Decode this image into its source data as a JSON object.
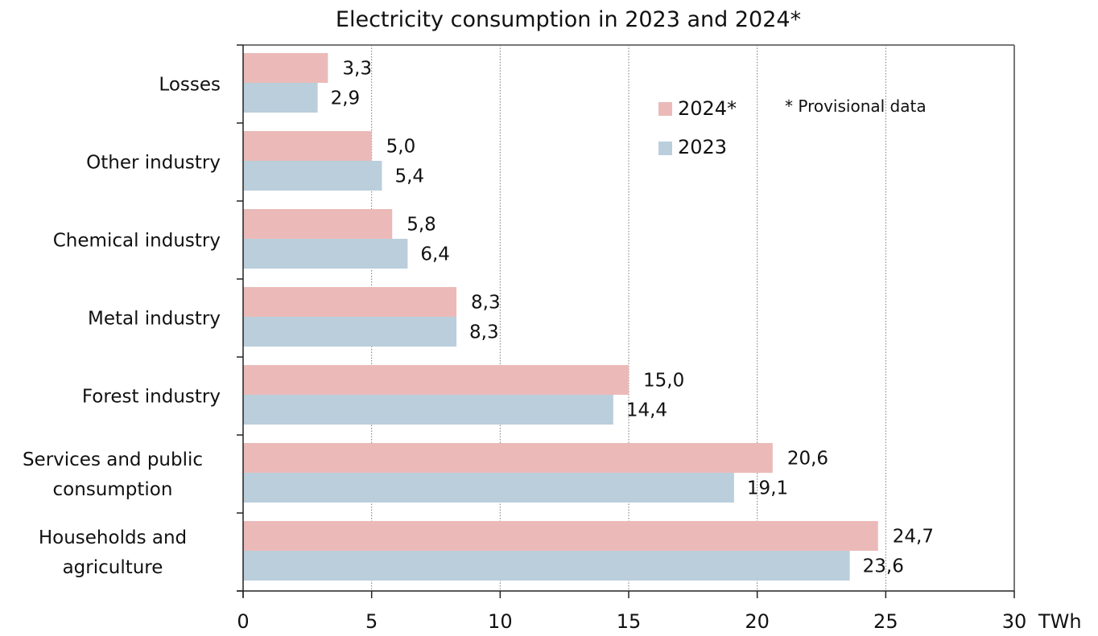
{
  "chart_data": {
    "type": "bar",
    "orientation": "horizontal",
    "title": "Electricity consumption in 2023 and 2024*",
    "xlabel": "TWh",
    "ylabel": "",
    "xlim": [
      0,
      30
    ],
    "xticks": [
      0,
      5,
      10,
      15,
      20,
      25,
      30
    ],
    "grid": "vertical-dotted",
    "legend_position": "top-right",
    "note": "* Provisional data",
    "categories": [
      [
        "Losses"
      ],
      [
        "Other industry"
      ],
      [
        "Chemical industry"
      ],
      [
        "Metal industry"
      ],
      [
        "Forest industry"
      ],
      [
        "Services and public",
        "consumption"
      ],
      [
        "Households and",
        "agriculture"
      ]
    ],
    "series": [
      {
        "name": "2024*",
        "color": "#EBBAB8",
        "values": [
          3.3,
          5.0,
          5.8,
          8.3,
          15.0,
          20.6,
          24.7
        ],
        "labels": [
          "3,3",
          "5,0",
          "5,8",
          "8,3",
          "15,0",
          "20,6",
          "24,7"
        ]
      },
      {
        "name": "2023",
        "color": "#BACEDC",
        "values": [
          2.9,
          5.4,
          6.4,
          8.3,
          14.4,
          19.1,
          23.6
        ],
        "labels": [
          "2,9",
          "5,4",
          "6,4",
          "8,3",
          "14,4",
          "19,1",
          "23,6"
        ]
      }
    ]
  }
}
